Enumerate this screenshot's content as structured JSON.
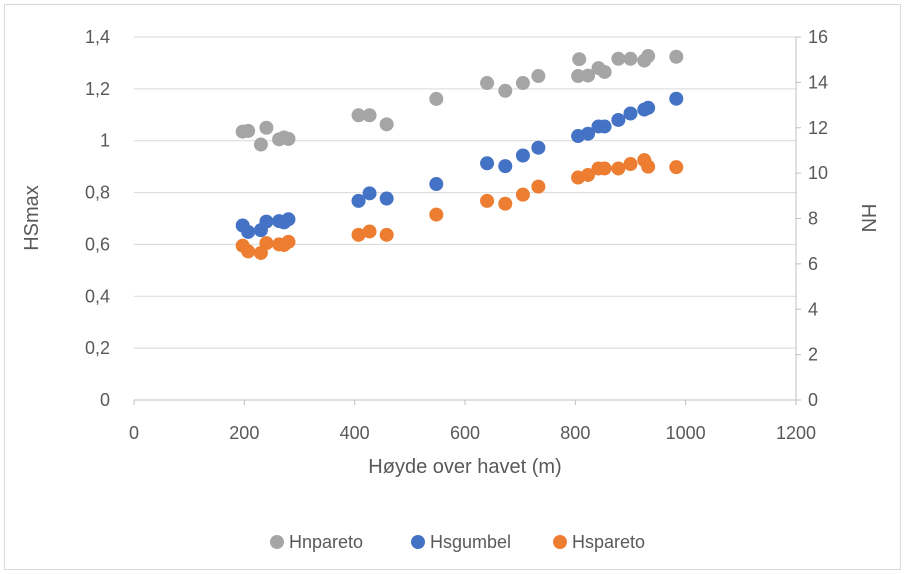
{
  "chart_data": {
    "type": "scatter",
    "title": "",
    "xlabel": "Høyde over havet (m)",
    "ylabel": "HSmax",
    "y2label": "HN",
    "xlim": [
      0,
      1200
    ],
    "ylim": [
      0,
      1.4
    ],
    "y2lim": [
      0,
      16
    ],
    "xticks": [
      0,
      200,
      400,
      600,
      800,
      1000,
      1200
    ],
    "xtick_labels": [
      "0",
      "200",
      "400",
      "600",
      "800",
      "1000",
      "1200"
    ],
    "yticks": [
      0,
      0.2,
      0.4,
      0.6,
      0.8,
      1.0,
      1.2,
      1.4
    ],
    "ytick_labels": [
      "0",
      "0,2",
      "0,4",
      "0,6",
      "0,8",
      "1",
      "1,2",
      "1,4"
    ],
    "y2ticks": [
      0,
      2,
      4,
      6,
      8,
      10,
      12,
      14,
      16
    ],
    "y2tick_labels": [
      "0",
      "2",
      "4",
      "6",
      "8",
      "10",
      "12",
      "14",
      "16"
    ],
    "grid": "horizontal",
    "legend_position": "bottom",
    "series": [
      {
        "name": "Hnpareto",
        "axis": "right",
        "color": "#a5a5a5",
        "points": [
          {
            "x": 197,
            "y": 11.83
          },
          {
            "x": 207,
            "y": 11.86
          },
          {
            "x": 230,
            "y": 11.26
          },
          {
            "x": 240,
            "y": 12.0
          },
          {
            "x": 263,
            "y": 11.49
          },
          {
            "x": 272,
            "y": 11.57
          },
          {
            "x": 280,
            "y": 11.51
          },
          {
            "x": 407,
            "y": 12.55
          },
          {
            "x": 427,
            "y": 12.55
          },
          {
            "x": 458,
            "y": 12.15
          },
          {
            "x": 548,
            "y": 13.27
          },
          {
            "x": 640,
            "y": 13.97
          },
          {
            "x": 673,
            "y": 13.63
          },
          {
            "x": 705,
            "y": 13.97
          },
          {
            "x": 733,
            "y": 14.28
          },
          {
            "x": 805,
            "y": 14.28
          },
          {
            "x": 807,
            "y": 15.02
          },
          {
            "x": 823,
            "y": 14.3
          },
          {
            "x": 842,
            "y": 14.63
          },
          {
            "x": 853,
            "y": 14.46
          },
          {
            "x": 878,
            "y": 15.04
          },
          {
            "x": 900,
            "y": 15.04
          },
          {
            "x": 925,
            "y": 14.96
          },
          {
            "x": 932,
            "y": 15.16
          },
          {
            "x": 983,
            "y": 15.13
          }
        ]
      },
      {
        "name": "Hsgumbel",
        "axis": "left",
        "color": "#4472c4",
        "points": [
          {
            "x": 197,
            "y": 0.673
          },
          {
            "x": 207,
            "y": 0.648
          },
          {
            "x": 230,
            "y": 0.655
          },
          {
            "x": 240,
            "y": 0.688
          },
          {
            "x": 263,
            "y": 0.69
          },
          {
            "x": 272,
            "y": 0.685
          },
          {
            "x": 280,
            "y": 0.697
          },
          {
            "x": 407,
            "y": 0.768
          },
          {
            "x": 427,
            "y": 0.797
          },
          {
            "x": 458,
            "y": 0.777
          },
          {
            "x": 548,
            "y": 0.833
          },
          {
            "x": 640,
            "y": 0.913
          },
          {
            "x": 673,
            "y": 0.902
          },
          {
            "x": 705,
            "y": 0.943
          },
          {
            "x": 733,
            "y": 0.973
          },
          {
            "x": 805,
            "y": 1.018
          },
          {
            "x": 823,
            "y": 1.027
          },
          {
            "x": 842,
            "y": 1.055
          },
          {
            "x": 853,
            "y": 1.055
          },
          {
            "x": 878,
            "y": 1.08
          },
          {
            "x": 900,
            "y": 1.105
          },
          {
            "x": 925,
            "y": 1.12
          },
          {
            "x": 932,
            "y": 1.127
          },
          {
            "x": 983,
            "y": 1.162
          }
        ]
      },
      {
        "name": "Hspareto",
        "axis": "left",
        "color": "#ed7d31",
        "points": [
          {
            "x": 197,
            "y": 0.595
          },
          {
            "x": 207,
            "y": 0.573
          },
          {
            "x": 230,
            "y": 0.567
          },
          {
            "x": 240,
            "y": 0.605
          },
          {
            "x": 263,
            "y": 0.6
          },
          {
            "x": 272,
            "y": 0.598
          },
          {
            "x": 280,
            "y": 0.61
          },
          {
            "x": 407,
            "y": 0.637
          },
          {
            "x": 427,
            "y": 0.65
          },
          {
            "x": 458,
            "y": 0.637
          },
          {
            "x": 548,
            "y": 0.715
          },
          {
            "x": 640,
            "y": 0.768
          },
          {
            "x": 673,
            "y": 0.757
          },
          {
            "x": 705,
            "y": 0.792
          },
          {
            "x": 733,
            "y": 0.823
          },
          {
            "x": 805,
            "y": 0.858
          },
          {
            "x": 823,
            "y": 0.868
          },
          {
            "x": 842,
            "y": 0.893
          },
          {
            "x": 853,
            "y": 0.893
          },
          {
            "x": 878,
            "y": 0.893
          },
          {
            "x": 900,
            "y": 0.91
          },
          {
            "x": 925,
            "y": 0.925
          },
          {
            "x": 932,
            "y": 0.9
          },
          {
            "x": 983,
            "y": 0.898
          }
        ]
      }
    ]
  }
}
